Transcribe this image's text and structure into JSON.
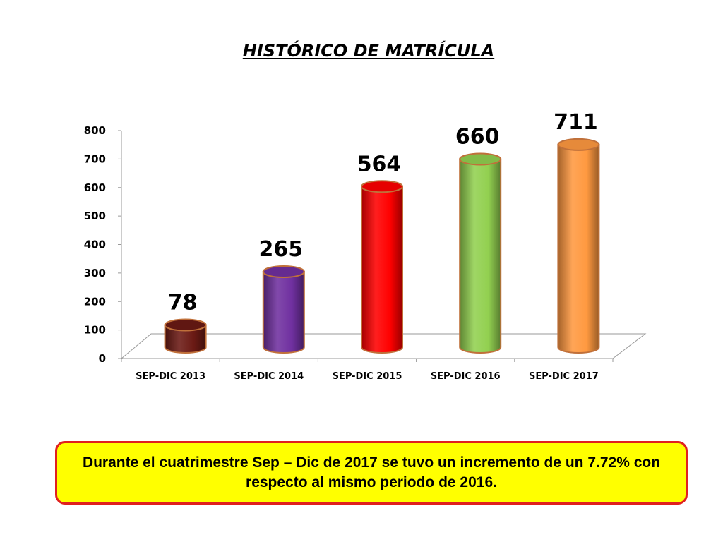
{
  "chart_data": {
    "type": "bar",
    "title": "HISTÓRICO DE MATRÍCULA",
    "categories": [
      "SEP-DIC 2013",
      "SEP-DIC 2014",
      "SEP-DIC 2015",
      "SEP-DIC 2016",
      "SEP-DIC 2017"
    ],
    "values": [
      78,
      265,
      564,
      660,
      711
    ],
    "data_labels": [
      "78",
      "265",
      "564",
      "660",
      "711"
    ],
    "colors": [
      "#6b1a14",
      "#7030a0",
      "#ff0000",
      "#92d050",
      "#ff9940"
    ],
    "ylim": [
      0,
      800
    ],
    "yticks": [
      0,
      100,
      200,
      300,
      400,
      500,
      600,
      700,
      800
    ],
    "grid": false,
    "xlabel": "",
    "ylabel": ""
  },
  "note": {
    "text": "Durante el cuatrimestre Sep – Dic  de 2017 se tuvo un incremento de un 7.72%  con respecto al mismo periodo de 2016."
  }
}
